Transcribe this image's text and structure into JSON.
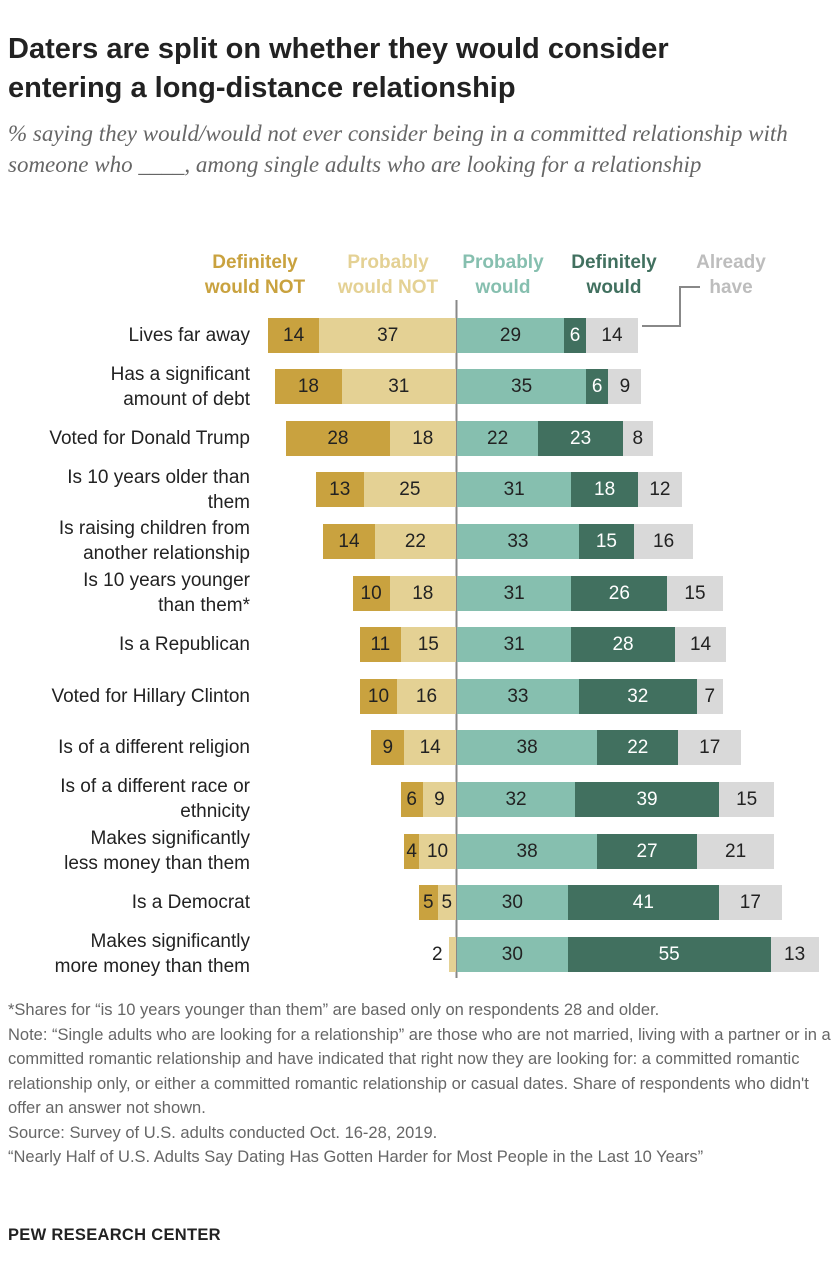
{
  "chart_data": {
    "type": "diverging-bar",
    "title": "Daters are split on whether they would consider entering a long-distance relationship",
    "subtitle": "% saying they would/would not ever consider being in a committed relationship with someone who ____, among single adults who are looking for a relationship",
    "categories": [
      "Lives far away",
      "Has a significant\namount of debt",
      "Voted for Donald Trump",
      "Is 10 years older than\nthem",
      "Is raising children from\nanother relationship",
      "Is 10 years younger\nthan them*",
      "Is a Republican",
      "Voted for Hillary Clinton",
      "Is of a different religion",
      "Is of a different race or\nethnicity",
      "Makes significantly\nless money than them",
      "Is a Democrat",
      "Makes significantly\nmore money than them"
    ],
    "series": [
      {
        "name": "Definitely would NOT",
        "color": "#c9a23f",
        "side": "left",
        "values": [
          14,
          18,
          28,
          13,
          14,
          10,
          11,
          10,
          9,
          6,
          4,
          5,
          null
        ]
      },
      {
        "name": "Probably would NOT",
        "color": "#e4d194",
        "side": "left",
        "values": [
          37,
          31,
          18,
          25,
          22,
          18,
          15,
          16,
          14,
          9,
          10,
          5,
          2
        ]
      },
      {
        "name": "Probably would",
        "color": "#86bfaf",
        "side": "right",
        "values": [
          29,
          35,
          22,
          31,
          33,
          31,
          31,
          33,
          38,
          32,
          38,
          30,
          30
        ]
      },
      {
        "name": "Definitely would",
        "color": "#41705f",
        "side": "right",
        "values": [
          6,
          6,
          23,
          18,
          15,
          26,
          28,
          32,
          22,
          39,
          27,
          41,
          55
        ]
      },
      {
        "name": "Already have",
        "color": "#d9d9d9",
        "side": "right",
        "values": [
          14,
          9,
          8,
          12,
          16,
          15,
          14,
          7,
          17,
          15,
          21,
          17,
          13
        ]
      }
    ],
    "notes": [
      "*Shares for “is 10 years younger than them” are based only on respondents 28 and older.",
      "Note: “Single adults who are looking for a relationship” are those who are not married, living with a partner or in a committed romantic relationship and have indicated that right now they are looking for: a committed romantic relationship only, or either a committed romantic relationship or casual dates. Share of respondents who didn't offer an answer not shown.",
      "Source: Survey of U.S. adults conducted Oct. 16-28, 2019.",
      "“Nearly Half of U.S. Adults Say Dating Has Gotten Harder for Most People in the Last 10 Years”"
    ],
    "source": "PEW RESEARCH CENTER"
  }
}
